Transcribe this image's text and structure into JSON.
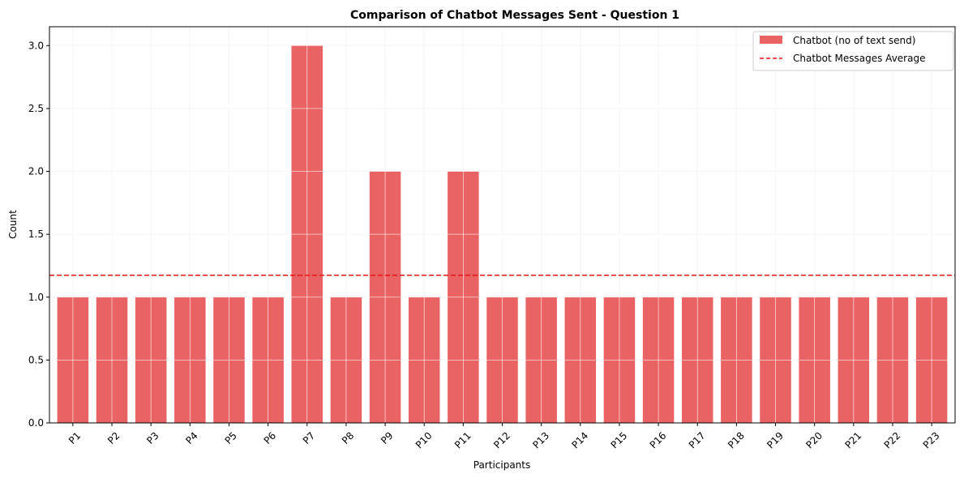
{
  "chart_data": {
    "type": "bar",
    "title": "Comparison of Chatbot Messages Sent - Question 1",
    "xlabel": "Participants",
    "ylabel": "Count",
    "categories": [
      "P1",
      "P2",
      "P3",
      "P4",
      "P5",
      "P6",
      "P7",
      "P8",
      "P9",
      "P10",
      "P11",
      "P12",
      "P13",
      "P14",
      "P15",
      "P16",
      "P17",
      "P18",
      "P19",
      "P20",
      "P21",
      "P22",
      "P23"
    ],
    "series": [
      {
        "name": "Chatbot (no of text send)",
        "color": "#e96264",
        "values": [
          1,
          1,
          1,
          1,
          1,
          1,
          3,
          1,
          2,
          1,
          2,
          1,
          1,
          1,
          1,
          1,
          1,
          1,
          1,
          1,
          1,
          1,
          1
        ]
      }
    ],
    "average": {
      "name": "Chatbot Messages Average",
      "value": 1.174,
      "color": "#ee1111"
    },
    "ylim": [
      0,
      3.15
    ],
    "yticks": [
      "0.0",
      "0.5",
      "1.0",
      "1.5",
      "2.0",
      "2.5",
      "3.0"
    ],
    "grid": true,
    "legend_position": "top-right"
  }
}
